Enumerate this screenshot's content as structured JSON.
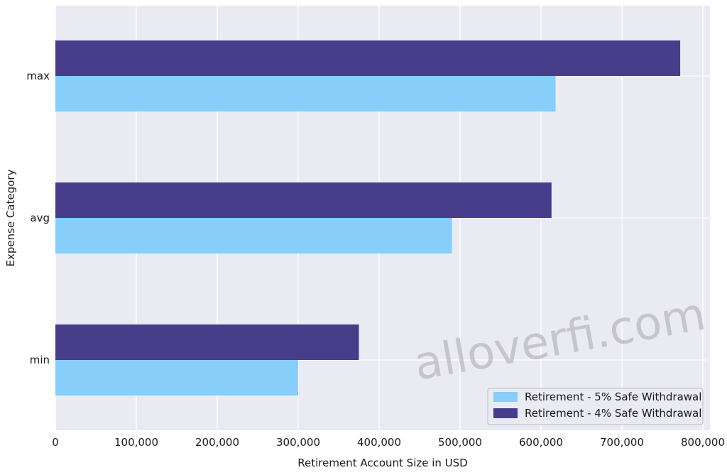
{
  "chart_data": {
    "type": "bar",
    "orientation": "horizontal",
    "categories": [
      "min",
      "avg",
      "max"
    ],
    "series": [
      {
        "name": "Retirement - 5% Safe Withdrawal",
        "color": "#87cefa",
        "values": [
          300000,
          490000,
          618000
        ]
      },
      {
        "name": "Retirement - 4% Safe Withdrawal",
        "color": "#483d8b",
        "values": [
          375000,
          613000,
          772000
        ]
      }
    ],
    "xlabel": "Retirement Account Size in USD",
    "ylabel": "Expense Category",
    "xlim": [
      0,
      810000
    ],
    "xticks": [
      0,
      100000,
      200000,
      300000,
      400000,
      500000,
      600000,
      700000,
      800000
    ],
    "xtick_labels": [
      "0",
      "100,000",
      "200,000",
      "300,000",
      "400,000",
      "500,000",
      "600,000",
      "700,000",
      "800,000"
    ],
    "grid": true,
    "legend_position": "bottom-right",
    "background": "#eaeaf2",
    "watermark": "alloverfi.com"
  }
}
